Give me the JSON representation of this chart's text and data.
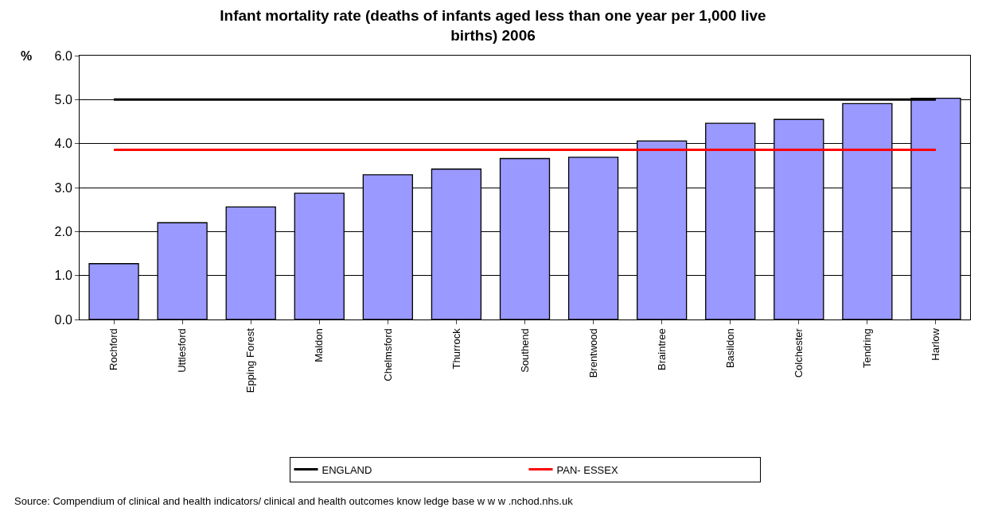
{
  "chart_data": {
    "type": "bar",
    "title": "Infant mortality rate (deaths of infants aged less than one year per 1,000 live births) 2006",
    "ylabel": "%",
    "categories": [
      "Rochford",
      "Uttlesford",
      "Epping Forest",
      "Maldon",
      "Chelmsford",
      "Thurrock",
      "Southend",
      "Brentwood",
      "Braintree",
      "Basildon",
      "Colchester",
      "Tendring",
      "Harlow"
    ],
    "values": [
      1.27,
      2.2,
      2.56,
      2.87,
      3.29,
      3.42,
      3.66,
      3.69,
      4.06,
      4.46,
      4.55,
      4.91,
      5.03
    ],
    "color": "#9999ff",
    "ylim": [
      0,
      6
    ],
    "yticks": [
      {
        "value": 0,
        "label": "0.0"
      },
      {
        "value": 1,
        "label": "1.0"
      },
      {
        "value": 2,
        "label": "2.0"
      },
      {
        "value": 3,
        "label": "3.0"
      },
      {
        "value": 4,
        "label": "4.0"
      },
      {
        "value": 5,
        "label": "5.0"
      },
      {
        "value": 6,
        "label": "6.0"
      }
    ],
    "ref_lines": [
      {
        "axis": "y",
        "value": 5.0,
        "label": "ENGLAND",
        "color": "#000000"
      },
      {
        "axis": "y",
        "value": 3.86,
        "label": "PAN- ESSEX",
        "color": "#ff0000"
      }
    ],
    "grid": "y",
    "legend": "bottom",
    "annotations": [
      "Source: Compendium of clinical and health indicators/ clinical and health outcomes know ledge base w w w .nchod.nhs.uk"
    ]
  }
}
